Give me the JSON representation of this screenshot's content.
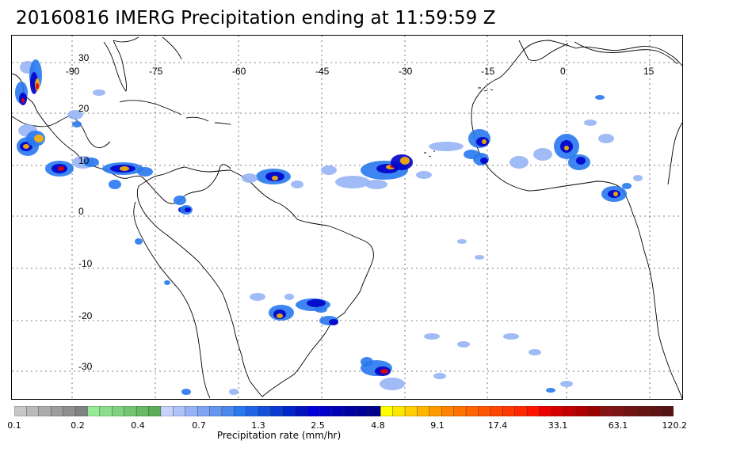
{
  "title": "20160816 IMERG Precipitation ending at 11:59:59 Z",
  "map": {
    "lon_labels": [
      "-90",
      "-75",
      "-60",
      "-45",
      "-30",
      "-15",
      "0",
      "15"
    ],
    "lat_labels": [
      "30",
      "20",
      "10",
      "0",
      "-10",
      "-20",
      "-30"
    ],
    "gridlines": "dotted",
    "coastline_color": "#000000"
  },
  "colorbar": {
    "title": "Precipitation rate (mm/hr)",
    "tick_labels": [
      "0.1",
      "0.2",
      "0.4",
      "0.7",
      "1.3",
      "2.5",
      "4.8",
      "9.1",
      "17.4",
      "33.1",
      "63.1",
      "120.2"
    ],
    "colors": [
      "#c8c8c8",
      "#bababa",
      "#acacac",
      "#9e9e9e",
      "#909090",
      "#828282",
      "#96eb96",
      "#8ade8a",
      "#7ed27e",
      "#72c672",
      "#66ba66",
      "#5aae5a",
      "#c8d2fa",
      "#afc3f8",
      "#96b4f5",
      "#7da5f2",
      "#6496ef",
      "#4b87ec",
      "#2878f0",
      "#1e64e6",
      "#1450dc",
      "#0a3cd2",
      "#0028c8",
      "#0014be",
      "#0000dc",
      "#0000c8",
      "#0000b4",
      "#0000a0",
      "#000096",
      "#00008c",
      "#ffff00",
      "#ffe600",
      "#ffcd00",
      "#ffb400",
      "#ff9b00",
      "#ff8200",
      "#ff7300",
      "#ff6400",
      "#ff5500",
      "#ff4600",
      "#ff3700",
      "#ff2800",
      "#ff1400",
      "#eb0000",
      "#d70000",
      "#c30000",
      "#af0000",
      "#9b0000",
      "#871414",
      "#7d1414",
      "#731414",
      "#691414",
      "#5f1414",
      "#551414"
    ]
  }
}
